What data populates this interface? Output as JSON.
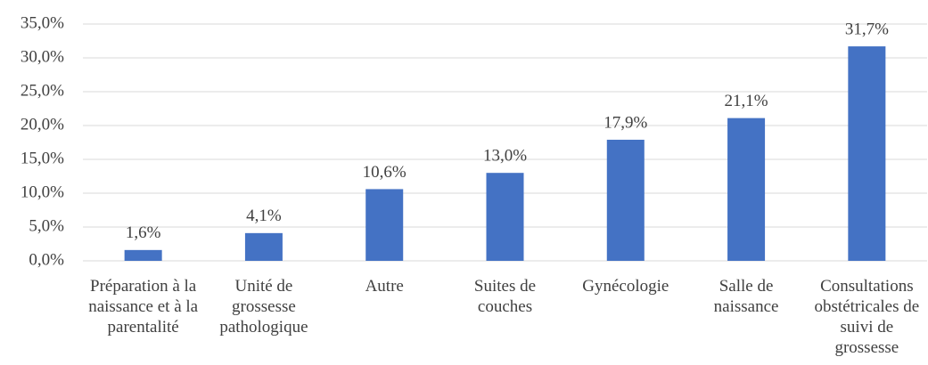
{
  "chart_data": {
    "type": "bar",
    "categories": [
      "Préparation à la naissance et à la parentalité",
      "Unité de grossesse pathologique",
      "Autre",
      "Suites de couches",
      "Gynécologie",
      "Salle de naissance",
      "Consultations obstétricales de suivi de grossesse"
    ],
    "values": [
      1.6,
      4.1,
      10.6,
      13.0,
      17.9,
      21.1,
      31.7
    ],
    "value_labels": [
      "1,6%",
      "4,1%",
      "10,6%",
      "13,0%",
      "17,9%",
      "21,1%",
      "31,7%"
    ],
    "color": "#4472c4",
    "ylim": [
      0,
      35
    ],
    "yticks": [
      {
        "value": 0,
        "label": "0,0%"
      },
      {
        "value": 5,
        "label": "5,0%"
      },
      {
        "value": 10,
        "label": "10,0%"
      },
      {
        "value": 15,
        "label": "15,0%"
      },
      {
        "value": 20,
        "label": "20,0%"
      },
      {
        "value": 25,
        "label": "25,0%"
      },
      {
        "value": 30,
        "label": "30,0%"
      },
      {
        "value": 35,
        "label": "35,0%"
      }
    ],
    "grid": true
  }
}
